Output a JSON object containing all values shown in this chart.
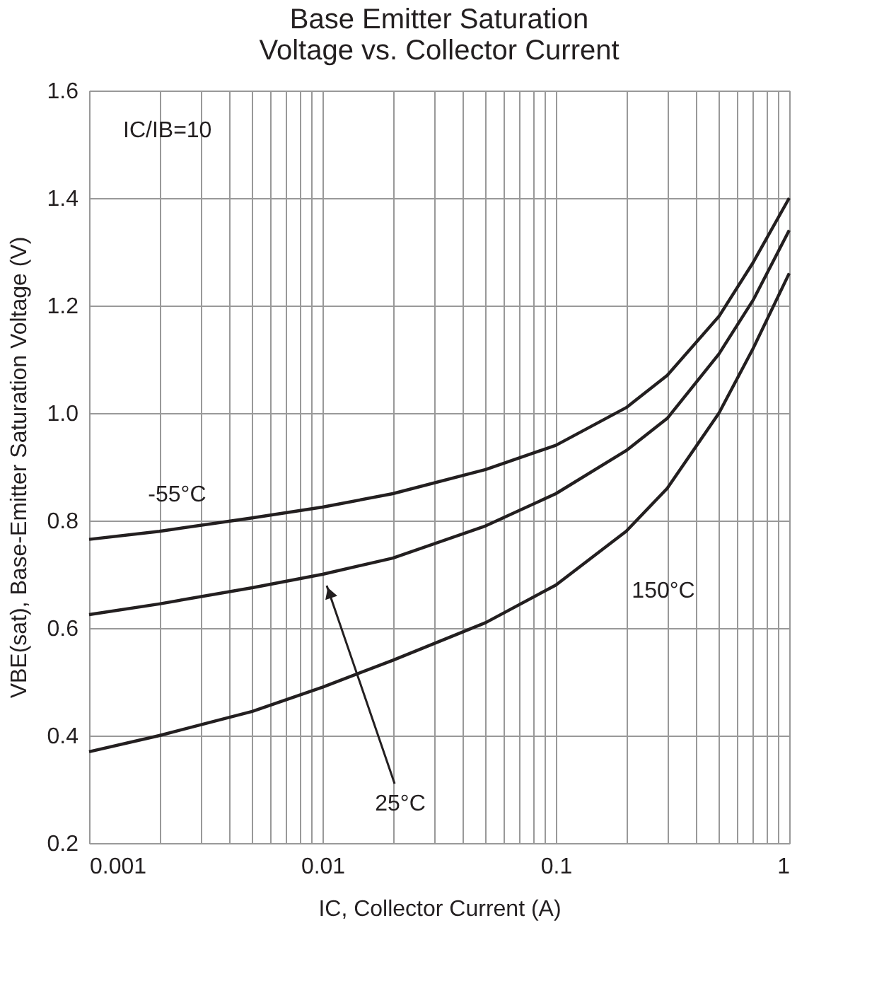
{
  "chart_data": {
    "type": "line",
    "title": "Base Emitter Saturation Voltage vs. Collector Current",
    "xlabel": "IC, Collector Current (A)",
    "ylabel": "VBE(sat), Base-Emitter Saturation Voltage (V)",
    "x": [
      0.001,
      0.002,
      0.005,
      0.01,
      0.02,
      0.05,
      0.1,
      0.2,
      0.3,
      0.5,
      0.7,
      1
    ],
    "series": [
      {
        "name": "-55°C",
        "color": "#231f20",
        "values": [
          0.765,
          0.78,
          0.805,
          0.825,
          0.85,
          0.895,
          0.94,
          1.01,
          1.07,
          1.18,
          1.28,
          1.4
        ]
      },
      {
        "name": "25°C",
        "color": "#231f20",
        "values": [
          0.625,
          0.645,
          0.675,
          0.7,
          0.73,
          0.79,
          0.85,
          0.93,
          0.99,
          1.11,
          1.21,
          1.34
        ]
      },
      {
        "name": "150°C",
        "color": "#231f20",
        "values": [
          0.37,
          0.4,
          0.445,
          0.49,
          0.54,
          0.61,
          0.68,
          0.78,
          0.86,
          1.0,
          1.12,
          1.26
        ]
      }
    ],
    "annotations": [
      "IC/IB=10"
    ],
    "legend": false,
    "log": "x",
    "xlim": [
      0.001,
      1
    ],
    "ylim": [
      0.2,
      1.6
    ],
    "xticks": [
      0.001,
      {
        "value": 0.002,
        "label": null
      },
      {
        "value": 0.003,
        "label": null
      },
      {
        "value": 0.004,
        "label": null
      },
      {
        "value": 0.005,
        "label": null
      },
      {
        "value": 0.006,
        "label": null
      },
      {
        "value": 0.007,
        "label": null
      },
      {
        "value": 0.008,
        "label": null
      },
      {
        "value": 0.009,
        "label": null
      },
      0.01,
      {
        "value": 0.02,
        "label": null
      },
      {
        "value": 0.03,
        "label": null
      },
      {
        "value": 0.04,
        "label": null
      },
      {
        "value": 0.05,
        "label": null
      },
      {
        "value": 0.06,
        "label": null
      },
      {
        "value": 0.07,
        "label": null
      },
      {
        "value": 0.08,
        "label": null
      },
      {
        "value": 0.09,
        "label": null
      },
      0.1,
      {
        "value": 0.2,
        "label": null
      },
      {
        "value": 0.3,
        "label": null
      },
      {
        "value": 0.4,
        "label": null
      },
      {
        "value": 0.5,
        "label": null
      },
      {
        "value": 0.6,
        "label": null
      },
      {
        "value": 0.7,
        "label": null
      },
      {
        "value": 0.8,
        "label": null
      },
      {
        "value": 0.9,
        "label": null
      },
      1
    ],
    "yticks": [
      0.2,
      0.4,
      0.6,
      0.8,
      {
        "value": 1,
        "label": "1.0"
      },
      1.2,
      1.4,
      1.6
    ],
    "grid": true,
    "marker": "none",
    "line_style": "solid"
  }
}
